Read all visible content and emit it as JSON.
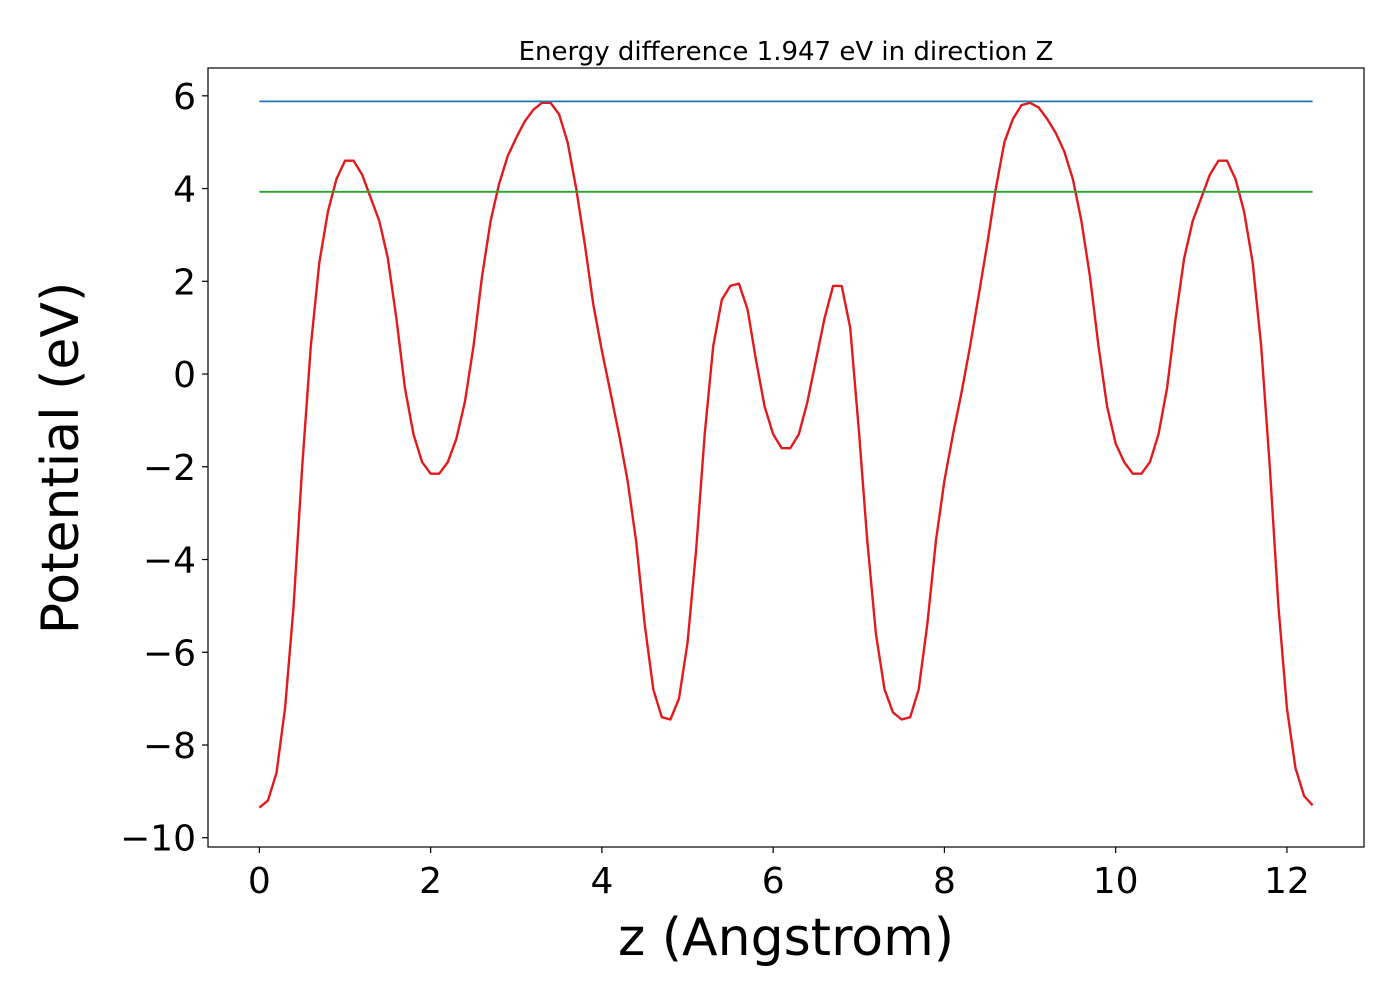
{
  "chart_data": {
    "type": "line",
    "title": "Energy difference 1.947 eV in direction Z",
    "xlabel": "z (Angstrom)",
    "ylabel": "Potential (eV)",
    "xlim": [
      -0.6,
      12.9
    ],
    "ylim": [
      -10.2,
      6.6
    ],
    "xticks": [
      0,
      2,
      4,
      6,
      8,
      10,
      12
    ],
    "xtick_labels": [
      "0",
      "2",
      "4",
      "6",
      "8",
      "10",
      "12"
    ],
    "yticks": [
      -10,
      -8,
      -6,
      -4,
      -2,
      0,
      2,
      4,
      6
    ],
    "ytick_labels": [
      "−10",
      "−8",
      "−6",
      "−4",
      "−2",
      "0",
      "2",
      "4",
      "6"
    ],
    "grid": false,
    "series": [
      {
        "color": "#e31a1c",
        "points": [
          [
            0.0,
            -9.35
          ],
          [
            0.1,
            -9.2
          ],
          [
            0.2,
            -8.6
          ],
          [
            0.3,
            -7.2
          ],
          [
            0.4,
            -5.0
          ],
          [
            0.5,
            -2.0
          ],
          [
            0.6,
            0.6
          ],
          [
            0.7,
            2.4
          ],
          [
            0.8,
            3.5
          ],
          [
            0.9,
            4.2
          ],
          [
            1.0,
            4.6
          ],
          [
            1.1,
            4.6
          ],
          [
            1.2,
            4.3
          ],
          [
            1.3,
            3.8
          ],
          [
            1.4,
            3.3
          ],
          [
            1.5,
            2.5
          ],
          [
            1.6,
            1.2
          ],
          [
            1.7,
            -0.3
          ],
          [
            1.8,
            -1.3
          ],
          [
            1.9,
            -1.9
          ],
          [
            2.0,
            -2.15
          ],
          [
            2.1,
            -2.15
          ],
          [
            2.2,
            -1.9
          ],
          [
            2.3,
            -1.4
          ],
          [
            2.4,
            -0.6
          ],
          [
            2.5,
            0.6
          ],
          [
            2.6,
            2.1
          ],
          [
            2.7,
            3.3
          ],
          [
            2.8,
            4.1
          ],
          [
            2.9,
            4.7
          ],
          [
            3.0,
            5.1
          ],
          [
            3.1,
            5.45
          ],
          [
            3.2,
            5.7
          ],
          [
            3.3,
            5.85
          ],
          [
            3.4,
            5.85
          ],
          [
            3.5,
            5.6
          ],
          [
            3.6,
            5.0
          ],
          [
            3.7,
            4.0
          ],
          [
            3.8,
            2.8
          ],
          [
            3.9,
            1.5
          ],
          [
            4.0,
            0.5
          ],
          [
            4.1,
            -0.4
          ],
          [
            4.2,
            -1.3
          ],
          [
            4.3,
            -2.3
          ],
          [
            4.4,
            -3.6
          ],
          [
            4.5,
            -5.4
          ],
          [
            4.6,
            -6.8
          ],
          [
            4.7,
            -7.4
          ],
          [
            4.8,
            -7.45
          ],
          [
            4.9,
            -7.0
          ],
          [
            5.0,
            -5.8
          ],
          [
            5.1,
            -3.8
          ],
          [
            5.2,
            -1.3
          ],
          [
            5.3,
            0.6
          ],
          [
            5.4,
            1.6
          ],
          [
            5.5,
            1.9
          ],
          [
            5.6,
            1.95
          ],
          [
            5.7,
            1.4
          ],
          [
            5.8,
            0.3
          ],
          [
            5.9,
            -0.7
          ],
          [
            6.0,
            -1.3
          ],
          [
            6.1,
            -1.6
          ],
          [
            6.2,
            -1.6
          ],
          [
            6.3,
            -1.3
          ],
          [
            6.4,
            -0.6
          ],
          [
            6.5,
            0.3
          ],
          [
            6.6,
            1.2
          ],
          [
            6.7,
            1.9
          ],
          [
            6.8,
            1.9
          ],
          [
            6.9,
            1.0
          ],
          [
            7.0,
            -1.2
          ],
          [
            7.1,
            -3.6
          ],
          [
            7.2,
            -5.6
          ],
          [
            7.3,
            -6.8
          ],
          [
            7.4,
            -7.3
          ],
          [
            7.5,
            -7.45
          ],
          [
            7.6,
            -7.4
          ],
          [
            7.7,
            -6.8
          ],
          [
            7.8,
            -5.4
          ],
          [
            7.9,
            -3.6
          ],
          [
            8.0,
            -2.3
          ],
          [
            8.1,
            -1.3
          ],
          [
            8.2,
            -0.4
          ],
          [
            8.3,
            0.6
          ],
          [
            8.4,
            1.7
          ],
          [
            8.5,
            2.8
          ],
          [
            8.6,
            4.0
          ],
          [
            8.7,
            5.0
          ],
          [
            8.8,
            5.5
          ],
          [
            8.9,
            5.8
          ],
          [
            9.0,
            5.85
          ],
          [
            9.1,
            5.75
          ],
          [
            9.2,
            5.5
          ],
          [
            9.3,
            5.2
          ],
          [
            9.4,
            4.8
          ],
          [
            9.5,
            4.2
          ],
          [
            9.6,
            3.3
          ],
          [
            9.7,
            2.1
          ],
          [
            9.8,
            0.6
          ],
          [
            9.9,
            -0.7
          ],
          [
            10.0,
            -1.5
          ],
          [
            10.1,
            -1.9
          ],
          [
            10.2,
            -2.15
          ],
          [
            10.3,
            -2.15
          ],
          [
            10.4,
            -1.9
          ],
          [
            10.5,
            -1.3
          ],
          [
            10.6,
            -0.3
          ],
          [
            10.7,
            1.2
          ],
          [
            10.8,
            2.5
          ],
          [
            10.9,
            3.3
          ],
          [
            11.0,
            3.8
          ],
          [
            11.1,
            4.3
          ],
          [
            11.2,
            4.6
          ],
          [
            11.3,
            4.6
          ],
          [
            11.4,
            4.2
          ],
          [
            11.5,
            3.5
          ],
          [
            11.6,
            2.4
          ],
          [
            11.7,
            0.6
          ],
          [
            11.8,
            -2.0
          ],
          [
            11.9,
            -5.0
          ],
          [
            12.0,
            -7.2
          ],
          [
            12.1,
            -8.5
          ],
          [
            12.2,
            -9.1
          ],
          [
            12.3,
            -9.3
          ]
        ]
      },
      {
        "color": "#1f77b4",
        "points": [
          [
            0.0,
            5.88
          ],
          [
            12.3,
            5.88
          ]
        ]
      },
      {
        "color": "#2ca02c",
        "points": [
          [
            0.0,
            3.93
          ],
          [
            12.3,
            3.93
          ]
        ]
      }
    ]
  }
}
